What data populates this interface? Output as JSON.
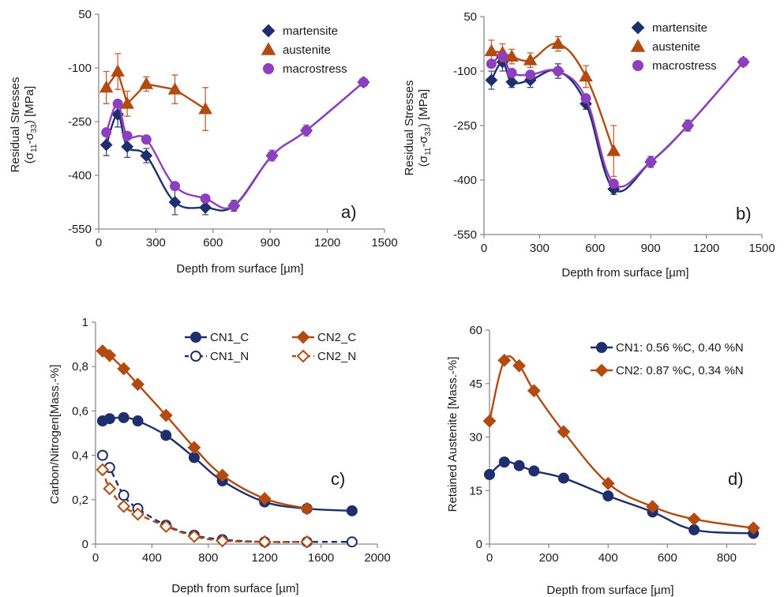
{
  "colors": {
    "navy": "#1f2f6e",
    "brown": "#b24a12",
    "purple": "#8e3fbf",
    "errbar": "#555555",
    "axis": "#888888"
  },
  "chart_data": [
    {
      "id": "a",
      "type": "line",
      "panel_label": "a)",
      "xlabel": "Depth from surface [µm]",
      "ylabel": "Residual Stresses",
      "ylabel_sub": "(σ11-σ33) [MPa]",
      "ylabel_sub_parts": [
        "(σ",
        "11",
        "-σ",
        "33",
        ") [MPa]"
      ],
      "xlim": [
        0,
        1500
      ],
      "ylim": [
        -550,
        50
      ],
      "xticks": [
        0,
        300,
        600,
        900,
        1200,
        1500
      ],
      "yticks": [
        50,
        -100,
        -250,
        -400,
        -550
      ],
      "legend_position": "top-right",
      "series": [
        {
          "name": "martensite",
          "color": "#1f2f6e",
          "marker": "diamond",
          "smooth": true,
          "filled": true,
          "x": [
            40,
            100,
            150,
            250,
            400,
            560,
            710,
            910,
            1090,
            1390
          ],
          "y": [
            -315,
            -230,
            -320,
            -345,
            -475,
            -490,
            -485,
            -345,
            -275,
            -140
          ],
          "err": [
            30,
            35,
            30,
            20,
            35,
            20,
            15,
            0,
            0,
            0
          ]
        },
        {
          "name": "austenite",
          "color": "#b24a12",
          "marker": "triangle",
          "smooth": false,
          "filled": true,
          "x": [
            40,
            100,
            150,
            250,
            400,
            560
          ],
          "y": [
            -155,
            -110,
            -200,
            -145,
            -160,
            -215
          ],
          "err": [
            45,
            50,
            35,
            20,
            40,
            60
          ]
        },
        {
          "name": "macrostress",
          "color": "#8e3fbf",
          "marker": "circle",
          "smooth": true,
          "filled": true,
          "x": [
            40,
            100,
            150,
            250,
            400,
            560,
            710,
            910,
            1090,
            1390
          ],
          "y": [
            -280,
            -200,
            -290,
            -300,
            -430,
            -465,
            -485,
            -345,
            -275,
            -140
          ],
          "err": [
            0,
            0,
            0,
            0,
            0,
            0,
            0,
            15,
            15,
            0
          ]
        }
      ]
    },
    {
      "id": "b",
      "type": "line",
      "panel_label": "b)",
      "xlabel": "Depth from surface [µm]",
      "ylabel": "Residual Stresses",
      "ylabel_sub": "(σ11-σ33) [MPa]",
      "ylabel_sub_parts": [
        "(σ",
        "11",
        "-σ",
        "33",
        ") [MPa]"
      ],
      "xlim": [
        0,
        1500
      ],
      "ylim": [
        -550,
        50
      ],
      "xticks": [
        0,
        300,
        600,
        900,
        1200,
        1500
      ],
      "yticks": [
        50,
        -100,
        -250,
        -400,
        -550
      ],
      "legend_position": "top-right",
      "series": [
        {
          "name": "martensite",
          "color": "#1f2f6e",
          "marker": "diamond",
          "smooth": true,
          "filled": true,
          "x": [
            40,
            100,
            150,
            250,
            400,
            550,
            700,
            900,
            1100,
            1400
          ],
          "y": [
            -125,
            -75,
            -130,
            -125,
            -100,
            -190,
            -425,
            -350,
            -250,
            -75
          ],
          "err": [
            25,
            25,
            15,
            20,
            20,
            15,
            15,
            15,
            15,
            0
          ]
        },
        {
          "name": "austenite",
          "color": "#b24a12",
          "marker": "triangle",
          "smooth": true,
          "filled": true,
          "x": [
            40,
            100,
            150,
            250,
            400,
            550,
            700
          ],
          "y": [
            -45,
            -50,
            -60,
            -70,
            -25,
            -115,
            -320
          ],
          "err": [
            30,
            25,
            20,
            20,
            20,
            30,
            70
          ]
        },
        {
          "name": "macrostress",
          "color": "#8e3fbf",
          "marker": "circle",
          "smooth": true,
          "filled": true,
          "x": [
            40,
            100,
            150,
            250,
            400,
            550,
            700,
            900,
            1100,
            1400
          ],
          "y": [
            -80,
            -60,
            -105,
            -110,
            -100,
            -175,
            -410,
            -350,
            -250,
            -75
          ],
          "err": [
            0,
            0,
            0,
            0,
            0,
            0,
            0,
            0,
            0,
            0
          ]
        }
      ]
    },
    {
      "id": "c",
      "type": "line",
      "panel_label": "c)",
      "xlabel": "Depth from surface [µm]",
      "ylabel": "Carbon/Nitrogen[Mass.-%]",
      "xlim": [
        0,
        2000
      ],
      "ylim": [
        0,
        1
      ],
      "xticks": [
        0,
        400,
        800,
        1200,
        1600,
        2000
      ],
      "xtick_labels": [
        "0",
        "400",
        "800",
        "1200",
        "1600",
        "2000"
      ],
      "yticks": [
        0,
        0.2,
        0.4,
        0.6,
        0.8,
        1
      ],
      "ytick_labels": [
        "0",
        "0,2",
        "0,4",
        "0,6",
        "0,8",
        "1"
      ],
      "legend_position": "top-right",
      "series": [
        {
          "name": "CN1_C",
          "color": "#1f2f6e",
          "marker": "circle",
          "smooth": true,
          "filled": true,
          "dash": false,
          "x": [
            50,
            100,
            200,
            300,
            500,
            700,
            900,
            1200,
            1500,
            1820
          ],
          "y": [
            0.555,
            0.565,
            0.57,
            0.555,
            0.49,
            0.39,
            0.285,
            0.19,
            0.16,
            0.15
          ]
        },
        {
          "name": "CN2_C",
          "color": "#b24a12",
          "marker": "diamond",
          "smooth": true,
          "filled": true,
          "dash": false,
          "x": [
            50,
            100,
            200,
            300,
            500,
            700,
            900,
            1200,
            1500
          ],
          "y": [
            0.87,
            0.85,
            0.79,
            0.72,
            0.58,
            0.435,
            0.31,
            0.205,
            0.16
          ]
        },
        {
          "name": "CN1_N",
          "color": "#1f2f6e",
          "marker": "circle",
          "smooth": true,
          "filled": false,
          "dash": true,
          "x": [
            50,
            100,
            200,
            300,
            500,
            700,
            900,
            1200,
            1500,
            1820
          ],
          "y": [
            0.4,
            0.345,
            0.22,
            0.16,
            0.085,
            0.04,
            0.02,
            0.01,
            0.01,
            0.01
          ]
        },
        {
          "name": "CN2_N",
          "color": "#b24a12",
          "marker": "diamond",
          "smooth": true,
          "filled": false,
          "dash": true,
          "x": [
            50,
            100,
            200,
            300,
            500,
            700,
            900,
            1200,
            1500
          ],
          "y": [
            0.335,
            0.25,
            0.17,
            0.135,
            0.08,
            0.035,
            0.015,
            0.01,
            0.01
          ]
        }
      ]
    },
    {
      "id": "d",
      "type": "line",
      "panel_label": "d)",
      "xlabel": "Depth from surface [µm]",
      "ylabel": "Retained Austenite [Mass.-%]",
      "xlim": [
        0,
        900
      ],
      "ylim": [
        0,
        60
      ],
      "xticks": [
        0,
        200,
        400,
        600,
        800
      ],
      "yticks": [
        0,
        15,
        30,
        45,
        60
      ],
      "legend_position": "top-right",
      "series": [
        {
          "name": "CN1: 0.56 %C, 0.40 %N",
          "color": "#1f2f6e",
          "marker": "circle",
          "smooth": true,
          "filled": true,
          "x": [
            0,
            50,
            100,
            150,
            250,
            400,
            550,
            690,
            890
          ],
          "y": [
            19.5,
            23,
            22,
            20.5,
            18.5,
            13.5,
            9,
            4,
            3
          ]
        },
        {
          "name": "CN2: 0.87 %C, 0.34 %N",
          "color": "#b24a12",
          "marker": "diamond",
          "smooth": true,
          "filled": true,
          "x": [
            0,
            50,
            100,
            150,
            250,
            400,
            550,
            690,
            890
          ],
          "y": [
            34.5,
            51.5,
            50,
            43,
            31.5,
            17,
            10.5,
            7,
            4.5
          ]
        }
      ]
    }
  ]
}
